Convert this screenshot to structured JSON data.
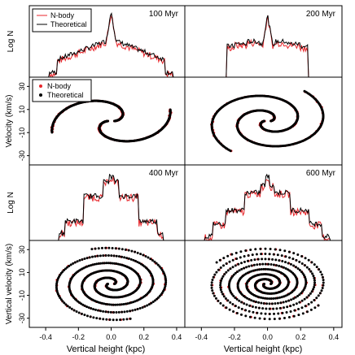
{
  "figure": {
    "x_axis_label": "Vertical height (kpc)",
    "legend_top": [
      {
        "label": "N-body",
        "color": "#e8262b",
        "style": "line"
      },
      {
        "label": "Theoretical",
        "color": "#000000",
        "style": "line"
      }
    ],
    "legend_phase": [
      {
        "label": "N-body",
        "color": "#e8262b",
        "style": "point"
      },
      {
        "label": "Theoretical",
        "color": "#000000",
        "style": "point"
      }
    ]
  },
  "chart_data": [
    {
      "id": "logn-100",
      "type": "line",
      "title": "100 Myr",
      "ylabel": "Log N",
      "xlim": [
        -0.5,
        0.45
      ],
      "ylim": [
        0,
        9
      ],
      "age_myr": 100,
      "series": [
        {
          "name": "N-body",
          "color": "#e8262b"
        },
        {
          "name": "Theoretical",
          "color": "#000000"
        }
      ]
    },
    {
      "id": "logn-200",
      "type": "line",
      "title": "200 Myr",
      "ylabel": "",
      "xlim": [
        -0.5,
        0.45
      ],
      "ylim": [
        0,
        9
      ],
      "age_myr": 200,
      "series": [
        {
          "name": "N-body",
          "color": "#e8262b"
        },
        {
          "name": "Theoretical",
          "color": "#000000"
        }
      ]
    },
    {
      "id": "phase-100",
      "type": "scatter",
      "title": "",
      "ylabel": "Velocity (km/s)",
      "xlim": [
        -0.5,
        0.45
      ],
      "ylim": [
        -38,
        38
      ],
      "age_myr": 100,
      "yticks": [
        -30,
        -10,
        10,
        30
      ],
      "series": [
        {
          "name": "N-body",
          "color": "#e8262b"
        },
        {
          "name": "Theoretical",
          "color": "#000000"
        }
      ]
    },
    {
      "id": "phase-200",
      "type": "scatter",
      "title": "",
      "ylabel": "",
      "xlim": [
        -0.5,
        0.45
      ],
      "ylim": [
        -38,
        38
      ],
      "age_myr": 200,
      "yticks": [
        -30,
        -10,
        10,
        30
      ],
      "series": [
        {
          "name": "N-body",
          "color": "#e8262b"
        },
        {
          "name": "Theoretical",
          "color": "#000000"
        }
      ]
    },
    {
      "id": "logn-400",
      "type": "line",
      "title": "400 Myr",
      "ylabel": "Log N",
      "xlim": [
        -0.5,
        0.45
      ],
      "ylim": [
        0,
        9
      ],
      "age_myr": 400,
      "series": [
        {
          "name": "N-body",
          "color": "#e8262b"
        },
        {
          "name": "Theoretical",
          "color": "#000000"
        }
      ]
    },
    {
      "id": "logn-600",
      "type": "line",
      "title": "600 Myr",
      "ylabel": "",
      "xlim": [
        -0.5,
        0.45
      ],
      "ylim": [
        0,
        9
      ],
      "age_myr": 600,
      "series": [
        {
          "name": "N-body",
          "color": "#e8262b"
        },
        {
          "name": "Theoretical",
          "color": "#000000"
        }
      ]
    },
    {
      "id": "phase-400",
      "type": "scatter",
      "title": "",
      "ylabel": "Vertical velocity (km/s)",
      "xlim": [
        -0.5,
        0.45
      ],
      "ylim": [
        -38,
        38
      ],
      "age_myr": 400,
      "yticks": [
        -30,
        -10,
        10,
        30
      ],
      "series": [
        {
          "name": "N-body",
          "color": "#e8262b"
        },
        {
          "name": "Theoretical",
          "color": "#000000"
        }
      ]
    },
    {
      "id": "phase-600",
      "type": "scatter",
      "title": "",
      "ylabel": "",
      "xlim": [
        -0.5,
        0.45
      ],
      "ylim": [
        -38,
        38
      ],
      "age_myr": 600,
      "yticks": [
        -30,
        -10,
        10,
        30
      ],
      "series": [
        {
          "name": "N-body",
          "color": "#e8262b"
        },
        {
          "name": "Theoretical",
          "color": "#000000"
        }
      ]
    }
  ],
  "x_ticks": [
    -0.4,
    -0.2,
    0.0,
    0.2,
    0.4
  ],
  "x_tick_labels": [
    "-0.4",
    "-0.2",
    "0.0",
    "0.2",
    "0.4"
  ]
}
